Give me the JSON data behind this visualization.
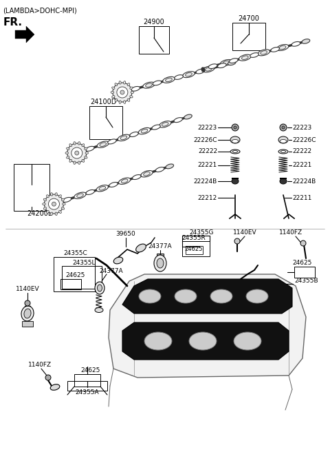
{
  "bg_color": "#ffffff",
  "line_color": "#000000",
  "fig_width": 4.8,
  "fig_height": 6.56,
  "dpi": 100,
  "gray": "#888888",
  "dgray": "#444444",
  "lgray": "#cccccc",
  "labels": {
    "top_title": "(LAMBDA>DOHC-MPI)",
    "fr_label": "FR.",
    "part_24900": "24900",
    "part_24700": "24700",
    "part_24100D": "24100D",
    "part_24200B": "24200B",
    "part_22223a": "22223",
    "part_22226Ca": "22226C",
    "part_22222a": "22222",
    "part_22221a": "22221",
    "part_22224Ba": "22224B",
    "part_22212": "22212",
    "part_22223b": "22223",
    "part_22226Cb": "22226C",
    "part_22222b": "22222",
    "part_22221b": "22221",
    "part_22224Bb": "22224B",
    "part_22211": "22211",
    "part_24355G": "24355G",
    "part_24355R": "24355R",
    "part_24625a": "24625",
    "part_1140EV_r": "1140EV",
    "part_1140FZ_r": "1140FZ",
    "part_39650": "39650",
    "part_24377A_r": "24377A",
    "part_24355C": "24355C",
    "part_24355L": "24355L",
    "part_24377A": "24377A",
    "part_24625b": "24625",
    "part_1140EV": "1140EV",
    "part_1140FZ": "1140FZ",
    "part_24625c": "24625",
    "part_24355A": "24355A",
    "part_24355B": "24355B",
    "part_24625d": "24625"
  }
}
